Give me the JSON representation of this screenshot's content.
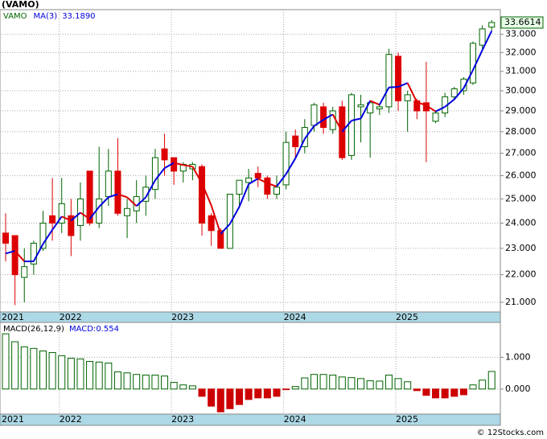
{
  "title": "(VAMO)",
  "footer": "© 12Stocks.com",
  "chart_data": [
    {
      "type": "candlestick",
      "ticker": "VAMO",
      "log_scale": true,
      "grid": true,
      "up_color": "#006400",
      "down_color": "#dd0000",
      "categories": [
        "2021",
        null,
        null,
        null,
        null,
        null,
        "2022",
        null,
        null,
        null,
        null,
        null,
        null,
        null,
        null,
        null,
        null,
        null,
        "2023",
        null,
        null,
        null,
        null,
        null,
        null,
        null,
        null,
        null,
        null,
        null,
        "2024",
        null,
        null,
        null,
        null,
        null,
        null,
        null,
        null,
        null,
        null,
        null,
        "2025",
        null,
        null,
        null,
        null,
        null,
        null,
        null,
        null,
        null,
        null
      ],
      "open": [
        23.6,
        23.5,
        21.9,
        22.4,
        23.0,
        24.3,
        24.0,
        24.3,
        23.9,
        26.2,
        24.0,
        25.1,
        26.2,
        24.3,
        24.5,
        24.9,
        25.4,
        27.2,
        26.8,
        26.2,
        26.3,
        26.4,
        24.3,
        23.7,
        23.0,
        25.2,
        25.7,
        26.1,
        25.9,
        25.2,
        25.6,
        27.8,
        27.3,
        28.3,
        29.2,
        28.1,
        29.2,
        26.9,
        29.2,
        28.9,
        29.1,
        29.2,
        31.8,
        29.5,
        29.5,
        29.4,
        28.5,
        28.9,
        29.7,
        30.0,
        30.4,
        32.4,
        33.4
      ],
      "high": [
        24.4,
        23.5,
        23.0,
        23.3,
        24.5,
        25.9,
        25.9,
        25.0,
        25.7,
        26.2,
        27.3,
        27.2,
        27.7,
        25.0,
        25.8,
        26.0,
        27.2,
        27.9,
        26.8,
        26.6,
        26.6,
        26.5,
        24.4,
        23.8,
        25.2,
        25.8,
        26.3,
        26.4,
        26.0,
        26.0,
        28.0,
        28.1,
        28.6,
        29.4,
        29.4,
        29.2,
        29.5,
        29.9,
        29.8,
        29.4,
        29.3,
        32.2,
        32.0,
        30.0,
        29.6,
        31.5,
        29.0,
        29.9,
        30.2,
        30.7,
        32.6,
        33.5,
        33.8
      ],
      "low": [
        22.5,
        20.9,
        21.0,
        22.0,
        22.9,
        23.3,
        23.6,
        22.7,
        23.3,
        23.9,
        23.8,
        24.7,
        24.3,
        23.4,
        24.0,
        24.3,
        25.0,
        26.0,
        25.6,
        25.7,
        25.8,
        23.5,
        23.1,
        23.0,
        23.0,
        24.6,
        24.9,
        25.5,
        25.0,
        25.0,
        25.4,
        26.8,
        27.0,
        28.0,
        27.9,
        27.9,
        26.7,
        26.7,
        27.5,
        26.8,
        28.8,
        28.9,
        29.0,
        28.0,
        28.6,
        26.6,
        28.4,
        28.7,
        29.6,
        29.8,
        30.3,
        32.2,
        33.2
      ],
      "close": [
        23.2,
        22.0,
        22.3,
        23.2,
        24.0,
        24.0,
        24.8,
        23.5,
        25.0,
        24.0,
        25.0,
        26.2,
        24.4,
        24.6,
        25.1,
        25.5,
        26.8,
        26.7,
        26.2,
        26.5,
        26.5,
        24.0,
        23.7,
        23.0,
        25.2,
        25.8,
        25.9,
        25.9,
        25.2,
        25.5,
        27.5,
        27.3,
        28.2,
        29.3,
        28.2,
        29.0,
        26.8,
        29.8,
        29.3,
        29.4,
        29.2,
        31.9,
        29.5,
        29.8,
        29.0,
        29.0,
        28.9,
        29.7,
        30.1,
        30.6,
        32.5,
        33.3,
        33.6614
      ],
      "last_label": "33.6614",
      "ma": {
        "name": "MA(3)",
        "up_color": "#0000dd",
        "down_color": "#dd0000",
        "legend_label": "33.1890",
        "values": [
          22.8,
          22.9,
          22.5,
          22.5,
          23.17,
          23.73,
          24.27,
          24.1,
          24.43,
          24.17,
          24.67,
          25.07,
          25.2,
          25.07,
          24.7,
          25.07,
          25.8,
          26.33,
          26.57,
          26.47,
          26.4,
          25.67,
          24.73,
          23.57,
          23.97,
          24.67,
          25.63,
          25.87,
          25.67,
          25.53,
          26.07,
          26.77,
          27.67,
          28.27,
          28.57,
          28.83,
          28.0,
          28.53,
          28.63,
          29.5,
          29.3,
          30.17,
          30.2,
          30.4,
          29.43,
          29.27,
          28.97,
          29.2,
          29.57,
          30.13,
          31.07,
          32.13,
          33.189
        ]
      },
      "ylim": [
        20.66,
        34.4
      ],
      "yticks": [
        {
          "value": 21,
          "label": "21.000"
        },
        {
          "value": 22,
          "label": "22.000"
        },
        {
          "value": 23,
          "label": "23.000"
        },
        {
          "value": 24,
          "label": "24.000"
        },
        {
          "value": 25,
          "label": "25.000"
        },
        {
          "value": 26,
          "label": "26.000"
        },
        {
          "value": 27,
          "label": "27.000"
        },
        {
          "value": 28,
          "label": "28.000"
        },
        {
          "value": 29,
          "label": "29.000"
        },
        {
          "value": 30,
          "label": "30.000"
        },
        {
          "value": 31,
          "label": "31.000"
        },
        {
          "value": 32,
          "label": "32.000"
        },
        {
          "value": 33,
          "label": "33.000"
        }
      ]
    },
    {
      "type": "bar",
      "name": "MACD(26,12,9)",
      "value_name": "MACD:",
      "grid": true,
      "up_color": "#006400",
      "down_color": "#cc0000",
      "categories": [
        "2021",
        null,
        null,
        null,
        null,
        null,
        "2022",
        null,
        null,
        null,
        null,
        null,
        null,
        null,
        null,
        null,
        null,
        null,
        "2023",
        null,
        null,
        null,
        null,
        null,
        null,
        null,
        null,
        null,
        null,
        null,
        "2024",
        null,
        null,
        null,
        null,
        null,
        null,
        null,
        null,
        null,
        null,
        null,
        "2025",
        null,
        null,
        null,
        null,
        null,
        null,
        null,
        null,
        null,
        null
      ],
      "values": [
        1.74,
        1.49,
        1.33,
        1.28,
        1.2,
        1.15,
        1.05,
        0.97,
        0.95,
        0.87,
        0.85,
        0.82,
        0.54,
        0.51,
        0.46,
        0.44,
        0.44,
        0.41,
        0.21,
        0.13,
        0.1,
        -0.23,
        -0.54,
        -0.72,
        -0.62,
        -0.49,
        -0.33,
        -0.28,
        -0.28,
        -0.23,
        -0.02,
        0.08,
        0.35,
        0.46,
        0.46,
        0.44,
        0.38,
        0.36,
        0.33,
        0.26,
        0.25,
        0.44,
        0.33,
        0.23,
        -0.05,
        -0.2,
        -0.28,
        -0.28,
        -0.23,
        -0.18,
        0.13,
        0.28,
        0.554
      ],
      "ylim": [
        -0.79,
        2.1
      ],
      "yticks": [
        {
          "value": 0,
          "label": "0.000"
        },
        {
          "value": 1,
          "label": "1.000"
        }
      ]
    }
  ]
}
